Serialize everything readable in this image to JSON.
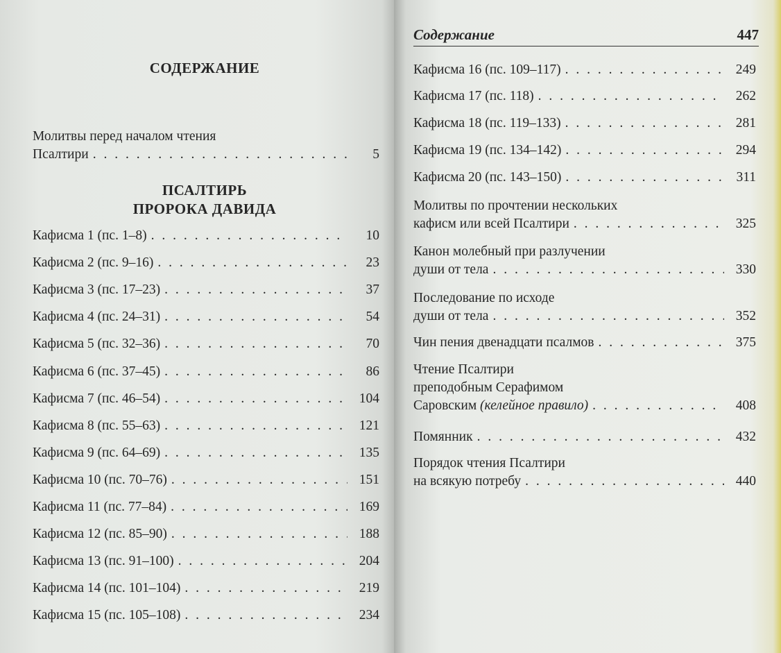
{
  "left_page": {
    "title": "СОДЕРЖАНИЕ",
    "section_title_lines": [
      "ПСАЛТИРЬ",
      "ПРОРОКА ДАВИДА"
    ],
    "intro_entry": {
      "lines": [
        "Молитвы перед началом чтения",
        "Псалтири"
      ],
      "page": "5"
    },
    "entries": [
      {
        "lines": [
          "Кафисма 1 (пс. 1–8)"
        ],
        "page": "10"
      },
      {
        "lines": [
          "Кафисма 2 (пс. 9–16)"
        ],
        "page": "23"
      },
      {
        "lines": [
          "Кафисма 3 (пс. 17–23)"
        ],
        "page": "37"
      },
      {
        "lines": [
          "Кафисма 4 (пс. 24–31)"
        ],
        "page": "54"
      },
      {
        "lines": [
          "Кафисма 5 (пс. 32–36)"
        ],
        "page": "70"
      },
      {
        "lines": [
          "Кафисма 6 (пс. 37–45)"
        ],
        "page": "86"
      },
      {
        "lines": [
          "Кафисма 7 (пс. 46–54)"
        ],
        "page": "104"
      },
      {
        "lines": [
          "Кафисма 8 (пс. 55–63)"
        ],
        "page": "121"
      },
      {
        "lines": [
          "Кафисма 9 (пс. 64–69)"
        ],
        "page": "135"
      },
      {
        "lines": [
          "Кафисма 10 (пс. 70–76)"
        ],
        "page": "151"
      },
      {
        "lines": [
          "Кафисма 11 (пс. 77–84)"
        ],
        "page": "169"
      },
      {
        "lines": [
          "Кафисма 12 (пс. 85–90)"
        ],
        "page": "188"
      },
      {
        "lines": [
          "Кафисма 13 (пс. 91–100)"
        ],
        "page": "204"
      },
      {
        "lines": [
          "Кафисма 14 (пс. 101–104)"
        ],
        "page": "219"
      },
      {
        "lines": [
          "Кафисма 15 (пс. 105–108)"
        ],
        "page": "234"
      }
    ]
  },
  "right_page": {
    "running_title": "Содержание",
    "page_number": "447",
    "entries": [
      {
        "lines": [
          "Кафисма 16 (пс. 109–117)"
        ],
        "page": "249"
      },
      {
        "lines": [
          "Кафисма 17 (пс. 118)"
        ],
        "page": "262"
      },
      {
        "lines": [
          "Кафисма 18 (пс. 119–133)"
        ],
        "page": "281"
      },
      {
        "lines": [
          "Кафисма 19 (пс. 134–142)"
        ],
        "page": "294"
      },
      {
        "lines": [
          "Кафисма 20 (пс. 143–150)"
        ],
        "page": "311"
      },
      {
        "lines": [
          "Молитвы по прочтении нескольких",
          "кафисм или всей Псалтири"
        ],
        "page": "325"
      },
      {
        "lines": [
          "Канон молебный при разлучении",
          "души от тела"
        ],
        "page": "330"
      },
      {
        "lines": [
          "Последование по исходе",
          "души от тела"
        ],
        "page": "352"
      },
      {
        "lines": [
          "Чин пения двенадцати псалмов"
        ],
        "page": "375"
      },
      {
        "lines": [
          "Чтение Псалтири",
          "преподобным Серафимом",
          "Саровским"
        ],
        "italic_suffix": "(келейное правило)",
        "page": "408"
      },
      {
        "lines": [
          "Помянник"
        ],
        "page": "432"
      },
      {
        "lines": [
          "Порядок чтения Псалтири",
          "на всякую потребу"
        ],
        "page": "440"
      }
    ]
  }
}
